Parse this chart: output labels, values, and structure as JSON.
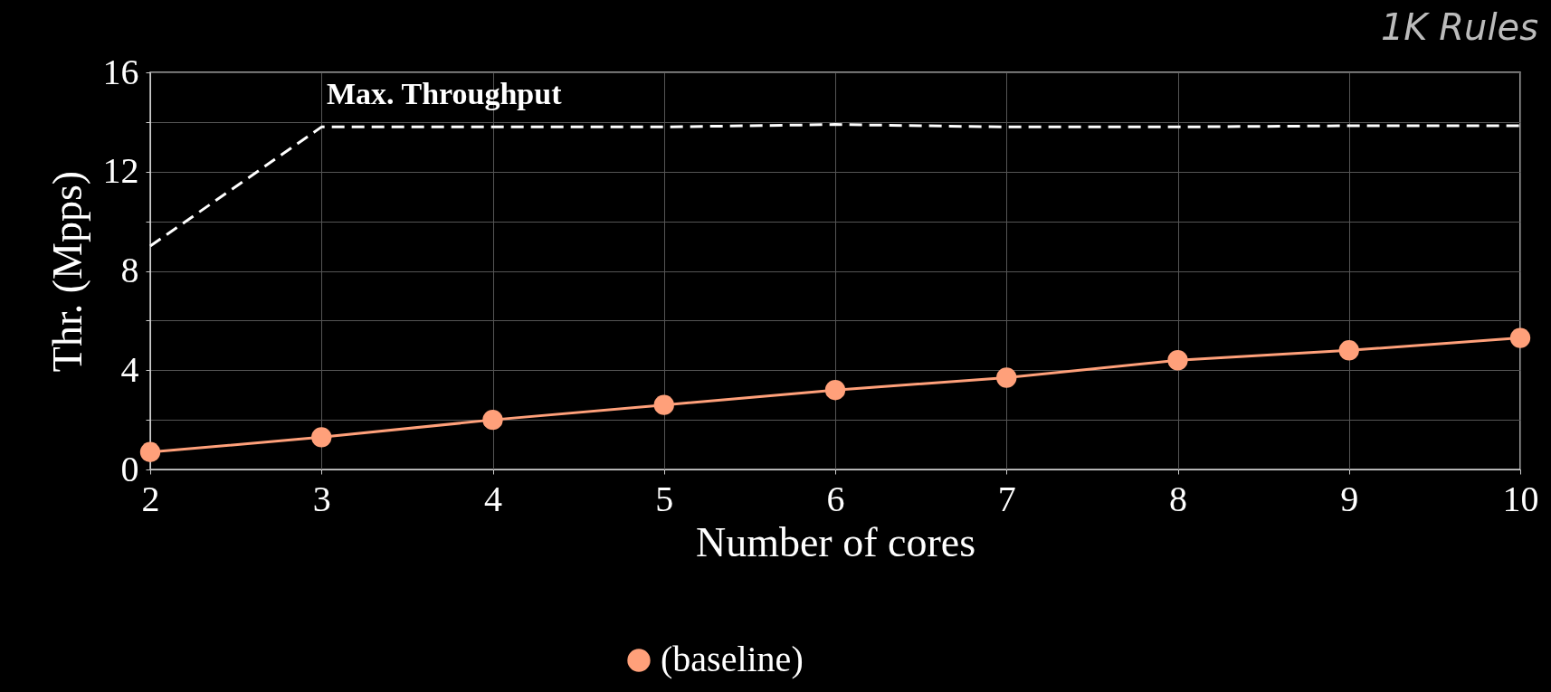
{
  "chart_data": {
    "type": "line",
    "title": "1K Rules",
    "xlabel": "Number of cores",
    "ylabel": "Thr. (Mpps)",
    "x": [
      2,
      3,
      4,
      5,
      6,
      7,
      8,
      9,
      10
    ],
    "series": [
      {
        "name": "(baseline)",
        "color": "#ffa07a",
        "marker": "circle",
        "line_style": "solid",
        "values": [
          0.7,
          1.3,
          2.0,
          2.6,
          3.2,
          3.7,
          4.4,
          4.8,
          5.3
        ]
      },
      {
        "color": "#ffffff",
        "marker": "none",
        "line_style": "dashed",
        "values": [
          9.0,
          13.8,
          13.8,
          13.8,
          13.9,
          13.8,
          13.8,
          13.85,
          13.85
        ]
      }
    ],
    "annotations": [
      "Max. Throughput"
    ],
    "xlim": [
      2,
      10
    ],
    "xticks": [
      2,
      3,
      4,
      5,
      6,
      7,
      8,
      9,
      10
    ],
    "ylim": [
      0,
      16
    ],
    "yticks": [
      0,
      {
        "value": 2,
        "label": null
      },
      4,
      {
        "value": 6,
        "label": null
      },
      8,
      {
        "value": 10,
        "label": null
      },
      12,
      {
        "value": 14,
        "label": null
      },
      16
    ],
    "grid": true,
    "legend": "bottom"
  }
}
